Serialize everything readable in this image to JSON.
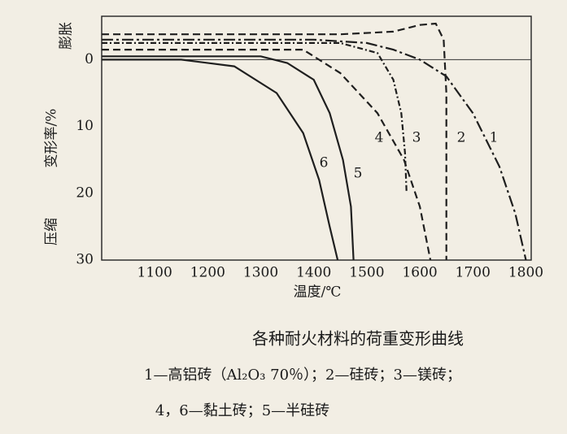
{
  "chart_data": {
    "type": "line",
    "title": "各种耐火材料的荷重变形曲线",
    "caption": [
      "1—高铝砖（Al₂O₃ 70％）；2—硅砖；3—镁砖；",
      "4，6—黏土砖；5—半硅砖"
    ],
    "x_label": "温度/℃",
    "y_label": "变形率/%",
    "y_label_top": "膨胀",
    "y_label_bottom": "压缩",
    "xlim": [
      1000,
      1810
    ],
    "ylim": [
      -6.5,
      30
    ],
    "y_reversed": true,
    "xticks": [
      1100,
      1200,
      1300,
      1400,
      1500,
      1600,
      1700,
      1800
    ],
    "yticks": [
      0,
      10,
      20,
      30
    ],
    "zero_line": true,
    "series": [
      {
        "name": "1",
        "color": "#1f1f1f",
        "style": "dashdot",
        "x": [
          1000,
          1400,
          1500,
          1550,
          1600,
          1650,
          1700,
          1750,
          1780,
          1800
        ],
        "values": [
          -3,
          -3,
          -2.5,
          -1.5,
          0,
          2.5,
          8,
          16,
          23,
          30
        ]
      },
      {
        "name": "2",
        "color": "#1f1f1f",
        "style": "dashed",
        "x": [
          1000,
          1450,
          1550,
          1600,
          1630,
          1645,
          1650,
          1650
        ],
        "values": [
          -3.8,
          -3.8,
          -4.2,
          -5.2,
          -5.4,
          -3,
          5,
          30
        ]
      },
      {
        "name": "3",
        "color": "#1f1f1f",
        "style": "dashdot-short",
        "x": [
          1000,
          1450,
          1520,
          1550,
          1565,
          1572,
          1575
        ],
        "values": [
          -2.5,
          -2.5,
          -1,
          3,
          8,
          14,
          20
        ]
      },
      {
        "name": "4",
        "color": "#1f1f1f",
        "style": "dashed",
        "x": [
          1000,
          1380,
          1450,
          1520,
          1570,
          1600,
          1620
        ],
        "values": [
          -1.5,
          -1.5,
          2,
          8,
          15,
          22,
          30
        ]
      },
      {
        "name": "5",
        "color": "#1f1f1f",
        "style": "solid",
        "x": [
          1000,
          1300,
          1350,
          1400,
          1430,
          1455,
          1470,
          1475
        ],
        "values": [
          -0.5,
          -0.5,
          0.5,
          3,
          8,
          15,
          22,
          30
        ]
      },
      {
        "name": "6",
        "color": "#1f1f1f",
        "style": "solid",
        "x": [
          1000,
          1150,
          1250,
          1330,
          1380,
          1410,
          1430,
          1445
        ],
        "values": [
          0,
          0,
          1,
          5,
          11,
          18,
          25,
          30
        ]
      }
    ]
  }
}
